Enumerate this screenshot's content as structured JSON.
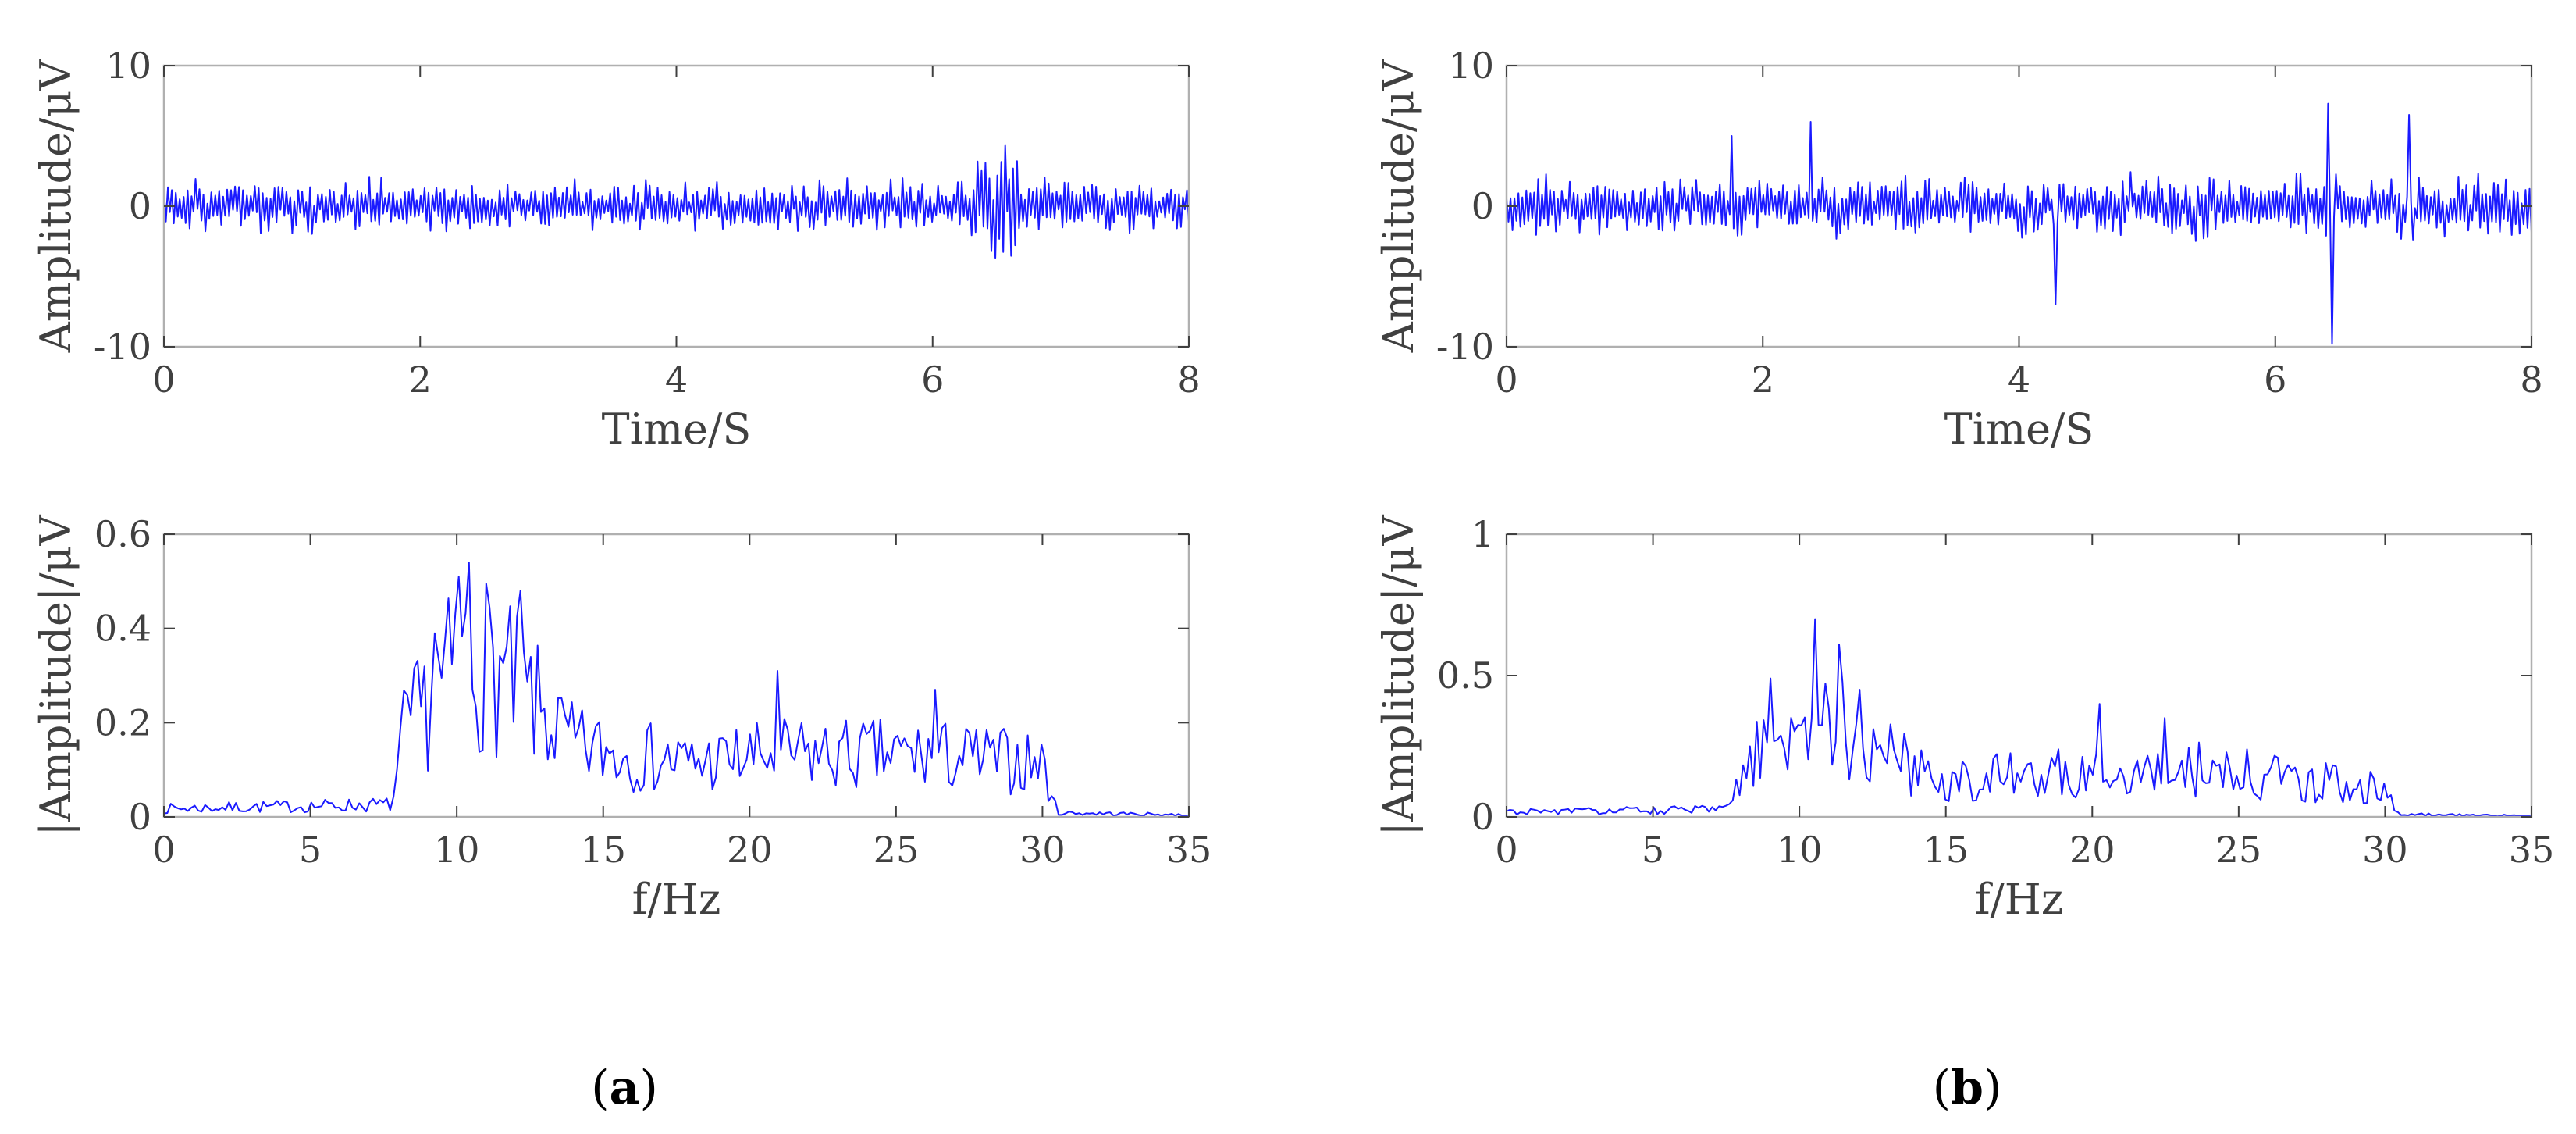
{
  "figure": {
    "panel_labels": [
      {
        "open": "(",
        "letter": "a",
        "close": ")"
      },
      {
        "open": "(",
        "letter": "b",
        "close": ")"
      }
    ]
  },
  "chart_data": [
    {
      "id": "a-time",
      "type": "line",
      "panel": "a",
      "title": "",
      "xlabel": "Time/S",
      "ylabel": "Amplitude/μV",
      "xlim": [
        0,
        8
      ],
      "ylim": [
        -10,
        10
      ],
      "xticks": [
        "0",
        "2",
        "4",
        "6",
        "8"
      ],
      "yticks": [
        "-10",
        "0",
        "10"
      ],
      "color": "#1a1aff",
      "signal": {
        "kind": "time",
        "n": 520,
        "seed": 11,
        "base_amp": 1.7,
        "bursts": [
          [
            6.3,
            6.7,
            2.4
          ]
        ],
        "spikes": []
      }
    },
    {
      "id": "a-spec",
      "type": "line",
      "panel": "a",
      "title": "",
      "xlabel": "f/Hz",
      "ylabel": "|Amplitude|/μV",
      "xlim": [
        0,
        35
      ],
      "ylim": [
        0,
        0.6
      ],
      "xticks": [
        "0",
        "5",
        "10",
        "15",
        "20",
        "25",
        "30",
        "35"
      ],
      "yticks": [
        "0",
        "0.2",
        "0.4",
        "0.6"
      ],
      "color": "#1a1aff",
      "signal": {
        "kind": "spectrum",
        "n": 300,
        "seed": 7,
        "envelope": [
          [
            0,
            0.02
          ],
          [
            7.8,
            0.03
          ],
          [
            8.2,
            0.2
          ],
          [
            9.5,
            0.32
          ],
          [
            10.5,
            0.4
          ],
          [
            12.5,
            0.28
          ],
          [
            14,
            0.17
          ],
          [
            18,
            0.13
          ],
          [
            21,
            0.15
          ],
          [
            26,
            0.15
          ],
          [
            30,
            0.13
          ],
          [
            30.5,
            0.01
          ],
          [
            35,
            0.005
          ]
        ],
        "peaks": [
          [
            10.4,
            0.54
          ],
          [
            12.2,
            0.48
          ],
          [
            10.1,
            0.51
          ],
          [
            21,
            0.31
          ],
          [
            26.3,
            0.27
          ],
          [
            9.2,
            0.39
          ]
        ]
      }
    },
    {
      "id": "b-time",
      "type": "line",
      "panel": "b",
      "title": "",
      "xlabel": "Time/S",
      "ylabel": "Amplitude/μV",
      "xlim": [
        0,
        8
      ],
      "ylim": [
        -10,
        10
      ],
      "xticks": [
        "0",
        "2",
        "4",
        "6",
        "8"
      ],
      "yticks": [
        "-10",
        "0",
        "10"
      ],
      "color": "#1a1aff",
      "signal": {
        "kind": "time",
        "n": 520,
        "seed": 23,
        "base_amp": 1.9,
        "bursts": [],
        "spikes": [
          [
            6.42,
            7.3
          ],
          [
            6.45,
            -9.8
          ],
          [
            7.05,
            6.5
          ],
          [
            2.38,
            6.0
          ],
          [
            4.28,
            -7.0
          ],
          [
            1.75,
            5.0
          ]
        ]
      }
    },
    {
      "id": "b-spec",
      "type": "line",
      "panel": "b",
      "title": "",
      "xlabel": "f/Hz",
      "ylabel": "|Amplitude|/μV",
      "xlim": [
        0,
        35
      ],
      "ylim": [
        0,
        1
      ],
      "xticks": [
        "0",
        "5",
        "10",
        "15",
        "20",
        "25",
        "30",
        "35"
      ],
      "yticks": [
        "0",
        "0.5",
        "1"
      ],
      "color": "#1a1aff",
      "signal": {
        "kind": "spectrum",
        "n": 300,
        "seed": 31,
        "envelope": [
          [
            0,
            0.02
          ],
          [
            7.5,
            0.03
          ],
          [
            8.5,
            0.25
          ],
          [
            9.5,
            0.35
          ],
          [
            11,
            0.4
          ],
          [
            13,
            0.25
          ],
          [
            15,
            0.15
          ],
          [
            20,
            0.18
          ],
          [
            23,
            0.2
          ],
          [
            28,
            0.14
          ],
          [
            29.8,
            0.12
          ],
          [
            30.5,
            0.01
          ],
          [
            35,
            0.005
          ]
        ],
        "peaks": [
          [
            10.5,
            0.7
          ],
          [
            11.4,
            0.61
          ],
          [
            9.0,
            0.49
          ],
          [
            20.3,
            0.4
          ],
          [
            22.5,
            0.35
          ],
          [
            12.0,
            0.45
          ]
        ]
      }
    }
  ]
}
